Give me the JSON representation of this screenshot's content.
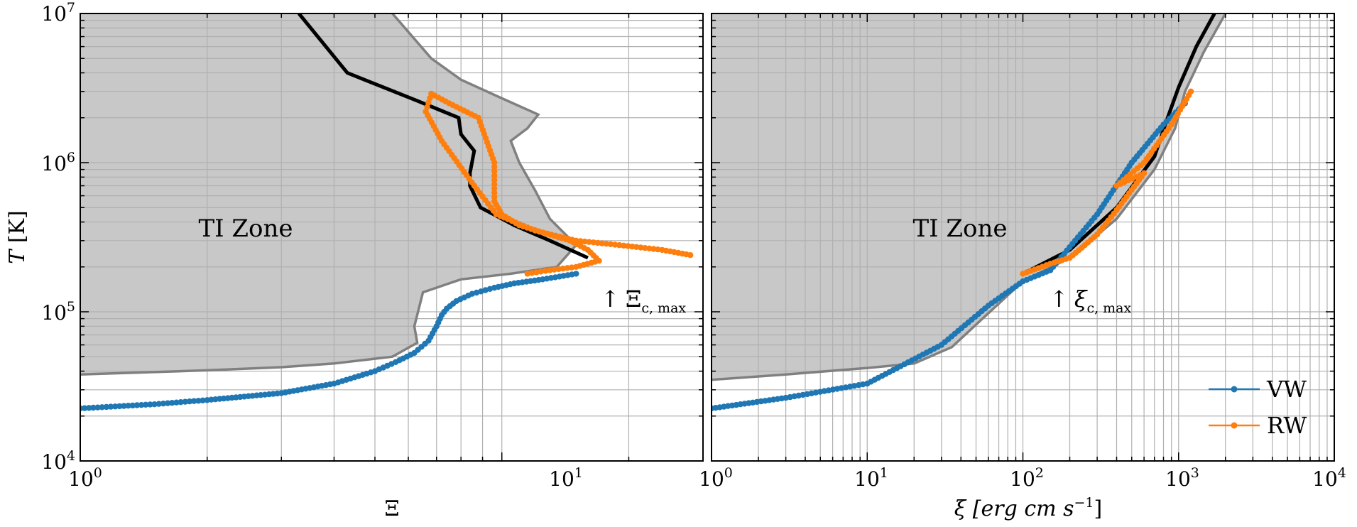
{
  "chart_data": [
    {
      "type": "line",
      "panel": "left",
      "xlabel": "Ξ",
      "ylabel": "T [K]",
      "xscale": "log",
      "yscale": "log",
      "xlim": [
        1,
        30
      ],
      "ylim": [
        10000,
        10000000
      ],
      "xticks": [
        {
          "base": "10",
          "exp": "0",
          "value": 1
        },
        {
          "base": "10",
          "exp": "1",
          "value": 10
        }
      ],
      "yticks": [
        {
          "base": "10",
          "exp": "4",
          "value": 10000
        },
        {
          "base": "10",
          "exp": "5",
          "value": 100000
        },
        {
          "base": "10",
          "exp": "6",
          "value": 1000000
        },
        {
          "base": "10",
          "exp": "7",
          "value": 10000000
        }
      ],
      "grid": true,
      "region_label": "TI Zone",
      "annotation": {
        "arrow": "↑",
        "symbol": "Ξ",
        "subscript": "c, max",
        "x": 16.5,
        "y": 200000
      },
      "ti_zone_boundary": {
        "x": [
          1.0,
          2.0,
          3.0,
          4.0,
          5.5,
          6.3,
          6.2,
          6.5,
          8.0,
          10.5,
          13.5,
          15.0,
          13.0,
          12.0,
          11.0,
          10.5,
          11.5,
          12.2,
          10.0,
          8.0,
          6.8,
          5.5
        ],
        "y": [
          38000,
          40500,
          42500,
          45000,
          50000,
          62000,
          80000,
          135000,
          165000,
          180000,
          200000,
          280000,
          420000,
          650000,
          1000000,
          1400000,
          1700000,
          2100000,
          2700000,
          3600000,
          5000000,
          10000000
        ]
      },
      "equilibrium_curve": {
        "x": [
          3.3,
          4.3,
          6.3,
          7.9,
          8.0,
          8.6,
          8.4,
          8.4,
          8.9,
          10.7,
          13.0,
          16.0
        ],
        "y": [
          10000000,
          4000000,
          2600000,
          2000000,
          1550000,
          1200000,
          850000,
          700000,
          500000,
          380000,
          300000,
          230000
        ]
      },
      "series": [
        {
          "name": "VW",
          "color": "#1f77b4",
          "x": [
            1.0,
            1.5,
            2.0,
            3.0,
            4.0,
            5.0,
            5.6,
            6.2,
            6.7,
            7.0,
            7.2,
            7.4,
            7.8,
            8.5,
            9.6,
            10.7,
            12.5,
            15.0
          ],
          "y": [
            22500,
            24000,
            25600,
            28500,
            33000,
            40000,
            46000,
            53000,
            64000,
            80000,
            95000,
            105000,
            118000,
            132000,
            145000,
            155000,
            165000,
            180000
          ]
        },
        {
          "name": "RW",
          "color": "#ff7f0e",
          "x": [
            11.5,
            13.0,
            15.0,
            17.0,
            16.0,
            14.5,
            12.5,
            11.0,
            10.0,
            9.6,
            9.6,
            8.8,
            7.5,
            6.8,
            6.6,
            7.2,
            8.6,
            9.7,
            12.0,
            15.0,
            19.0,
            24.0,
            28.0
          ],
          "y": [
            180000,
            190000,
            200000,
            220000,
            260000,
            300000,
            340000,
            380000,
            450000,
            550000,
            1000000,
            2000000,
            2500000,
            2900000,
            2200000,
            1400000,
            700000,
            450000,
            350000,
            300000,
            280000,
            260000,
            240000
          ]
        }
      ]
    },
    {
      "type": "line",
      "panel": "right",
      "xlabel": "ξ  [erg cm s",
      "xlabel_sup": "−1",
      "xlabel_close": "]",
      "xscale": "log",
      "yscale": "log",
      "xlim": [
        1,
        10000
      ],
      "ylim": [
        10000,
        10000000
      ],
      "xticks": [
        {
          "base": "10",
          "exp": "0",
          "value": 1
        },
        {
          "base": "10",
          "exp": "1",
          "value": 10
        },
        {
          "base": "10",
          "exp": "2",
          "value": 100
        },
        {
          "base": "10",
          "exp": "3",
          "value": 1000
        },
        {
          "base": "10",
          "exp": "4",
          "value": 10000
        }
      ],
      "grid": true,
      "region_label": "TI Zone",
      "annotation": {
        "arrow": "↑",
        "symbol": "ξ",
        "subscript": "c, max",
        "x": 150,
        "y": 200000
      },
      "legend": {
        "position": "lower right"
      },
      "ti_zone_boundary": {
        "x": [
          1.0,
          3.0,
          10.0,
          20.0,
          35.0,
          55.0,
          100.0,
          200.0,
          400.0,
          700.0,
          950.0,
          1100.0,
          1450.0,
          2000.0
        ],
        "y": [
          35000,
          38000,
          42000,
          45000,
          58000,
          90000,
          160000,
          230000,
          420000,
          900000,
          1700000,
          3000000,
          5500000,
          10000000
        ]
      },
      "equilibrium_curve": {
        "x": [
          100.0,
          200.0,
          400.0,
          700.0,
          850.0,
          1000.0,
          1300.0,
          1700.0
        ],
        "y": [
          180000,
          260000,
          500000,
          1100000,
          2000000,
          3200000,
          6000000,
          10000000
        ]
      },
      "series": [
        {
          "name": "VW",
          "color": "#1f77b4",
          "x": [
            1.0,
            3.0,
            10.0,
            30.0,
            60.0,
            100.0,
            150.0,
            300.0,
            500.0,
            800.0,
            1100.0
          ],
          "y": [
            22500,
            26500,
            33000,
            60000,
            110000,
            160000,
            190000,
            450000,
            1000000,
            1800000,
            2500000
          ]
        },
        {
          "name": "RW",
          "color": "#ff7f0e",
          "x": [
            100.0,
            150.0,
            200.0,
            250.0,
            300.0,
            400.0,
            600.0,
            400.0,
            600.0,
            900.0,
            1200.0
          ],
          "y": [
            180000,
            210000,
            230000,
            280000,
            330000,
            480000,
            850000,
            700000,
            1000000,
            1800000,
            3000000
          ]
        }
      ]
    }
  ]
}
